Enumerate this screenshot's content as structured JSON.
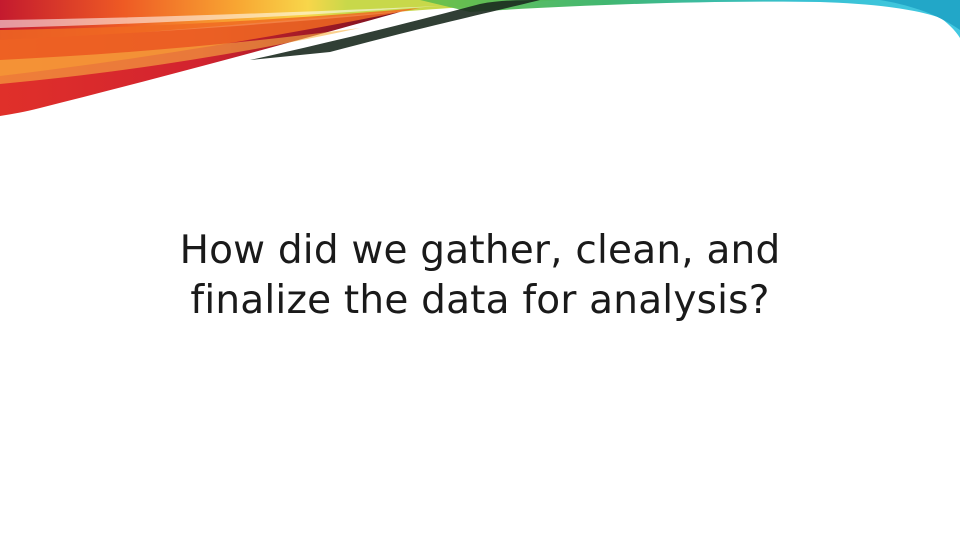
{
  "slide": {
    "question_lines": [
      "How did we gather, clean, and",
      "finalize the data for analysis?"
    ]
  },
  "colors": {
    "background": "#ffffff",
    "text": "#1a1a1a",
    "swoosh_red": "#d21f2a",
    "swoosh_orange": "#f58220",
    "swoosh_yellow": "#f7d33c",
    "swoosh_green": "#3aa843",
    "swoosh_cyan": "#2cc0d9",
    "swoosh_dark": "#1b2a1f"
  }
}
